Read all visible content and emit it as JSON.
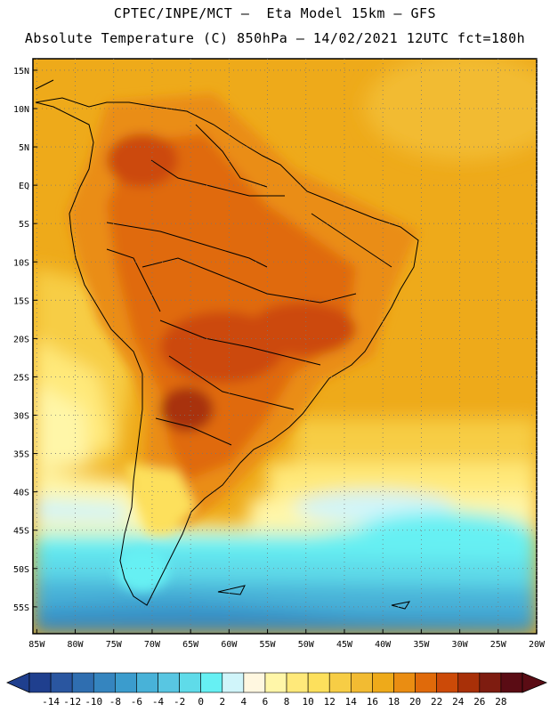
{
  "header": {
    "title_line1": "CPTEC/INPE/MCT –  Eta Model 15km – GFS",
    "title_line2": "Absolute Temperature (C) 850hPa – 14/02/2021 12UTC fct=180h"
  },
  "map": {
    "lat_labels": [
      "15N",
      "10N",
      "5N",
      "EQ",
      "5S",
      "10S",
      "15S",
      "20S",
      "25S",
      "30S",
      "35S",
      "40S",
      "45S",
      "50S",
      "55S"
    ],
    "lat_values": [
      15,
      10,
      5,
      0,
      -5,
      -10,
      -15,
      -20,
      -25,
      -30,
      -35,
      -40,
      -45,
      -50,
      -55
    ],
    "lon_labels": [
      "85W",
      "80W",
      "75W",
      "70W",
      "65W",
      "60W",
      "55W",
      "50W",
      "45W",
      "40W",
      "35W",
      "30W",
      "25W",
      "20W"
    ],
    "lon_values": [
      -85,
      -80,
      -75,
      -70,
      -65,
      -60,
      -55,
      -50,
      -45,
      -40,
      -35,
      -30,
      -25,
      -20
    ],
    "lon_range": [
      -85.5,
      -20
    ],
    "lat_range": [
      -58.5,
      16.5
    ],
    "grid": "dotted"
  },
  "colorbar": {
    "labels": [
      "-14",
      "-12",
      "-10",
      "-8",
      "-6",
      "-4",
      "-2",
      "0",
      "2",
      "4",
      "6",
      "8",
      "10",
      "12",
      "14",
      "16",
      "18",
      "20",
      "22",
      "24",
      "26",
      "28"
    ],
    "colors": [
      "#1f3f8e",
      "#2a56a0",
      "#2f6eb0",
      "#3585bf",
      "#3b9ccd",
      "#48b2d8",
      "#58c6e2",
      "#5fdbe9",
      "#66f0f3",
      "#d0f5fa",
      "#fff7e0",
      "#fff6a8",
      "#ffe97a",
      "#fde05c",
      "#f7cd45",
      "#f2bb32",
      "#eeaa1a",
      "#ea8d12",
      "#e06a0a",
      "#cc4a08",
      "#a83008",
      "#7e1c10",
      "#5a0c14"
    ]
  }
}
